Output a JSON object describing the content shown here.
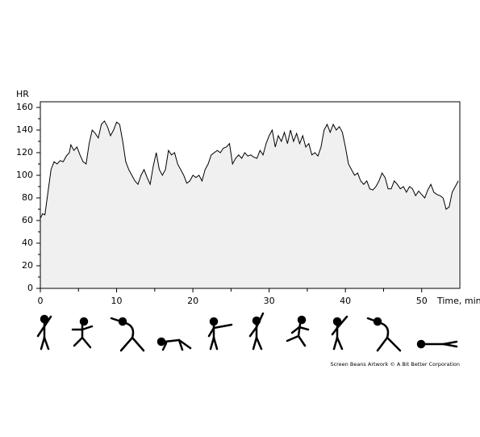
{
  "chart_data": {
    "type": "area",
    "y_label": "HR",
    "x_label": "Time, min",
    "credit": "Screen Beans Artwork © A Bit Better Corporation",
    "color": "#000000",
    "fill": "#f0f0f0",
    "xlim": [
      0,
      55
    ],
    "ylim": [
      0,
      165
    ],
    "xticks": [
      0,
      10,
      20,
      30,
      40,
      50
    ],
    "xminorticks": [
      5,
      15,
      25,
      35,
      45
    ],
    "yticks": [
      0,
      20,
      40,
      60,
      80,
      100,
      120,
      140,
      160
    ],
    "yminorticks": [
      10,
      30,
      50,
      70,
      90,
      110,
      130,
      150
    ],
    "x": [
      0,
      0.3,
      0.6,
      1,
      1.4,
      1.8,
      2.2,
      2.6,
      3,
      3.4,
      3.8,
      4,
      4.4,
      4.8,
      5.2,
      5.6,
      6,
      6.4,
      6.8,
      7.2,
      7.6,
      8,
      8.4,
      8.8,
      9.2,
      9.6,
      10,
      10.4,
      10.8,
      11.2,
      11.6,
      12,
      12.4,
      12.8,
      13.2,
      13.6,
      14,
      14.4,
      14.8,
      15.2,
      15.6,
      16,
      16.4,
      16.8,
      17.2,
      17.6,
      18,
      18.4,
      18.8,
      19.2,
      19.6,
      20,
      20.4,
      20.8,
      21.2,
      21.6,
      22,
      22.4,
      22.8,
      23.2,
      23.6,
      24,
      24.4,
      24.8,
      25.2,
      25.6,
      26,
      26.4,
      26.8,
      27.2,
      27.6,
      28,
      28.4,
      28.8,
      29.2,
      29.6,
      30,
      30.4,
      30.8,
      31.2,
      31.6,
      32,
      32.4,
      32.8,
      33.2,
      33.6,
      34,
      34.4,
      34.8,
      35.2,
      35.6,
      36,
      36.4,
      36.8,
      37.2,
      37.6,
      38,
      38.4,
      38.8,
      39.2,
      39.6,
      40,
      40.4,
      40.8,
      41.2,
      41.6,
      42,
      42.4,
      42.8,
      43.2,
      43.6,
      44,
      44.4,
      44.8,
      45.2,
      45.6,
      46,
      46.4,
      46.8,
      47.2,
      47.6,
      48,
      48.4,
      48.8,
      49.2,
      49.6,
      50,
      50.4,
      50.8,
      51.2,
      51.6,
      52,
      52.4,
      52.8,
      53.2,
      53.6,
      54,
      54.4,
      54.8
    ],
    "values": [
      62,
      66,
      65,
      85,
      105,
      112,
      110,
      113,
      112,
      117,
      120,
      127,
      122,
      125,
      118,
      112,
      110,
      128,
      140,
      137,
      133,
      145,
      148,
      143,
      135,
      140,
      147,
      145,
      130,
      112,
      105,
      100,
      95,
      92,
      100,
      105,
      98,
      92,
      108,
      120,
      105,
      100,
      105,
      122,
      118,
      120,
      110,
      105,
      100,
      93,
      95,
      100,
      98,
      100,
      95,
      105,
      110,
      118,
      120,
      122,
      120,
      124,
      125,
      128,
      110,
      115,
      118,
      115,
      120,
      117,
      118,
      116,
      115,
      122,
      118,
      128,
      135,
      140,
      125,
      135,
      130,
      138,
      128,
      140,
      130,
      137,
      128,
      135,
      125,
      128,
      118,
      120,
      117,
      125,
      140,
      145,
      138,
      145,
      140,
      143,
      138,
      125,
      110,
      105,
      100,
      102,
      95,
      92,
      95,
      88,
      87,
      90,
      95,
      102,
      98,
      88,
      88,
      95,
      92,
      88,
      90,
      85,
      90,
      88,
      82,
      86,
      83,
      80,
      87,
      92,
      85,
      83,
      82,
      80,
      70,
      72,
      85,
      90,
      95
    ]
  }
}
